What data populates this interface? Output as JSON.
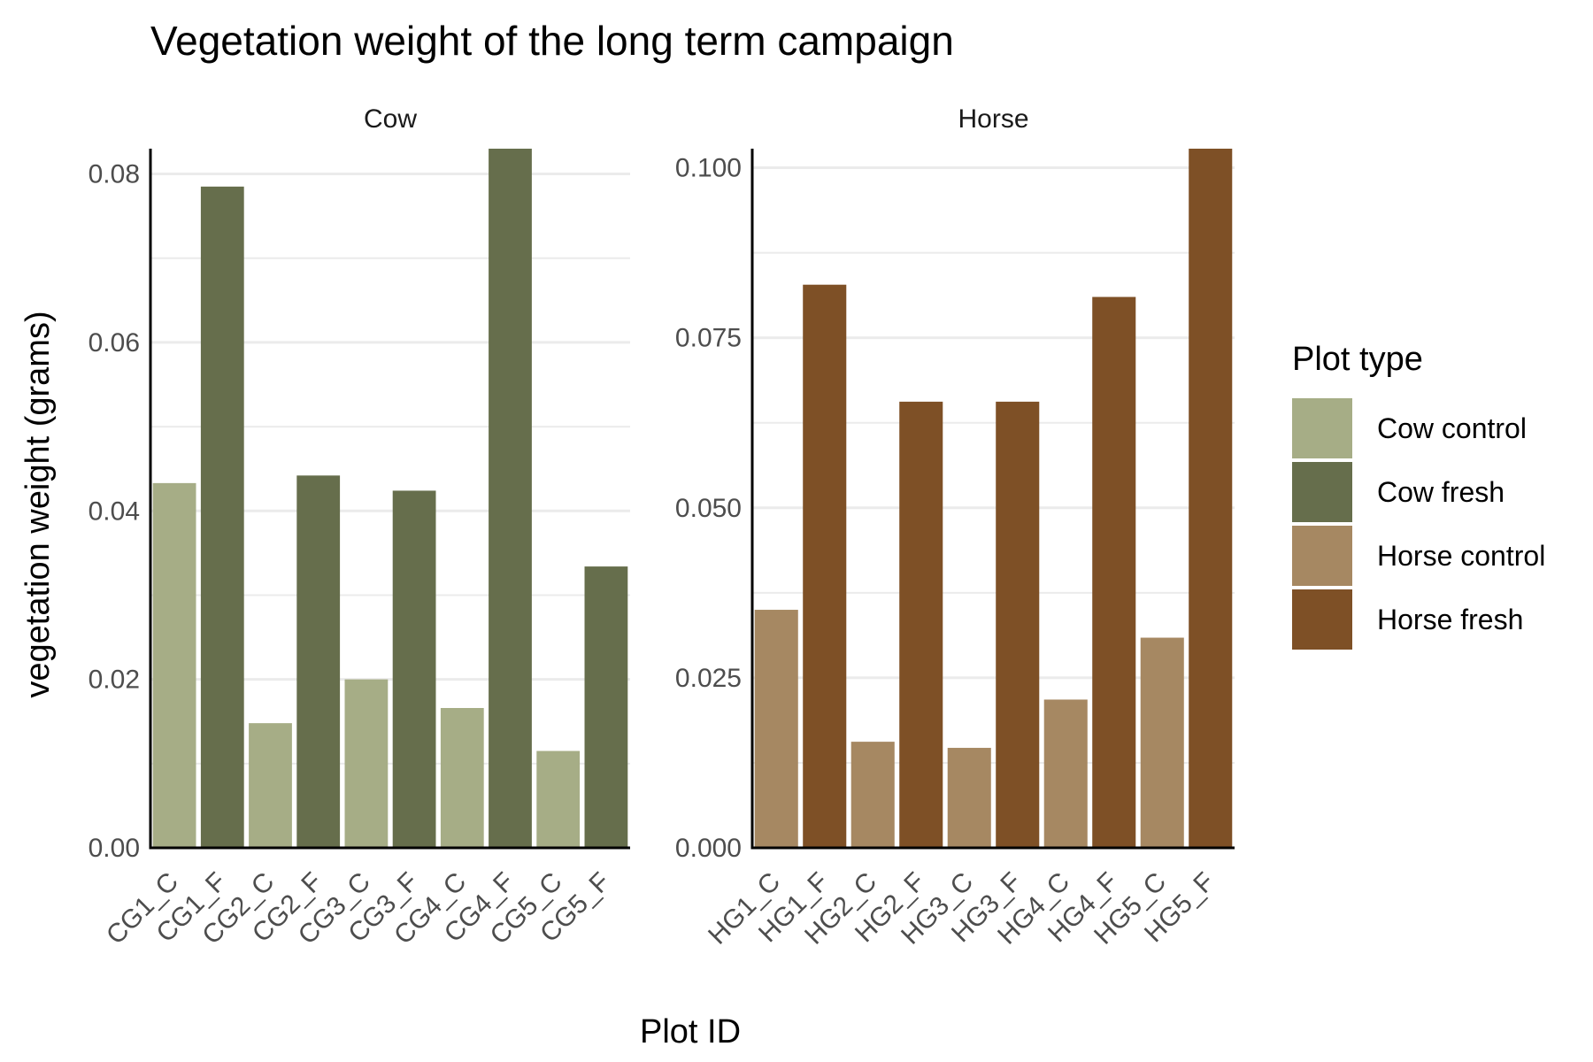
{
  "chart_data": {
    "type": "bar",
    "title": "Vegetation weight of the long term campaign",
    "xlabel": "Plot ID",
    "ylabel": "vegetation weight (grams)",
    "legend": {
      "title": "Plot type",
      "position": "right",
      "entries": [
        {
          "label": "Cow control",
          "color": "#a6ad86"
        },
        {
          "label": "Cow fresh",
          "color": "#666e4c"
        },
        {
          "label": "Horse control",
          "color": "#a68862"
        },
        {
          "label": "Horse fresh",
          "color": "#7e5026"
        }
      ]
    },
    "grid": true,
    "panels": [
      {
        "label": "Cow",
        "ylim": [
          0,
          0.083
        ],
        "yticks": [
          0,
          0.02,
          0.04,
          0.06,
          0.08
        ],
        "yticklabels": [
          "0.00",
          "0.02",
          "0.04",
          "0.06",
          "0.08"
        ],
        "categories": [
          "CG1_C",
          "CG1_F",
          "CG2_C",
          "CG2_F",
          "CG3_C",
          "CG3_F",
          "CG4_C",
          "CG4_F",
          "CG5_C",
          "CG5_F"
        ],
        "values": [
          0.0433,
          0.0785,
          0.0148,
          0.0442,
          0.02,
          0.0424,
          0.0166,
          0.083,
          0.0115,
          0.0334
        ],
        "types": [
          "Cow control",
          "Cow fresh",
          "Cow control",
          "Cow fresh",
          "Cow control",
          "Cow fresh",
          "Cow control",
          "Cow fresh",
          "Cow control",
          "Cow fresh"
        ]
      },
      {
        "label": "Horse",
        "ylim": [
          0,
          0.1028
        ],
        "yticks": [
          0,
          0.025,
          0.05,
          0.075,
          0.1
        ],
        "yticklabels": [
          "0.000",
          "0.025",
          "0.050",
          "0.075",
          "0.100"
        ],
        "categories": [
          "HG1_C",
          "HG1_F",
          "HG2_C",
          "HG2_F",
          "HG3_C",
          "HG3_F",
          "HG4_C",
          "HG4_F",
          "HG5_C",
          "HG5_F"
        ],
        "values": [
          0.035,
          0.0828,
          0.0156,
          0.0656,
          0.0147,
          0.0656,
          0.0218,
          0.081,
          0.0309,
          0.1028
        ],
        "types": [
          "Horse control",
          "Horse fresh",
          "Horse control",
          "Horse fresh",
          "Horse control",
          "Horse fresh",
          "Horse control",
          "Horse fresh",
          "Horse control",
          "Horse fresh"
        ]
      }
    ]
  }
}
